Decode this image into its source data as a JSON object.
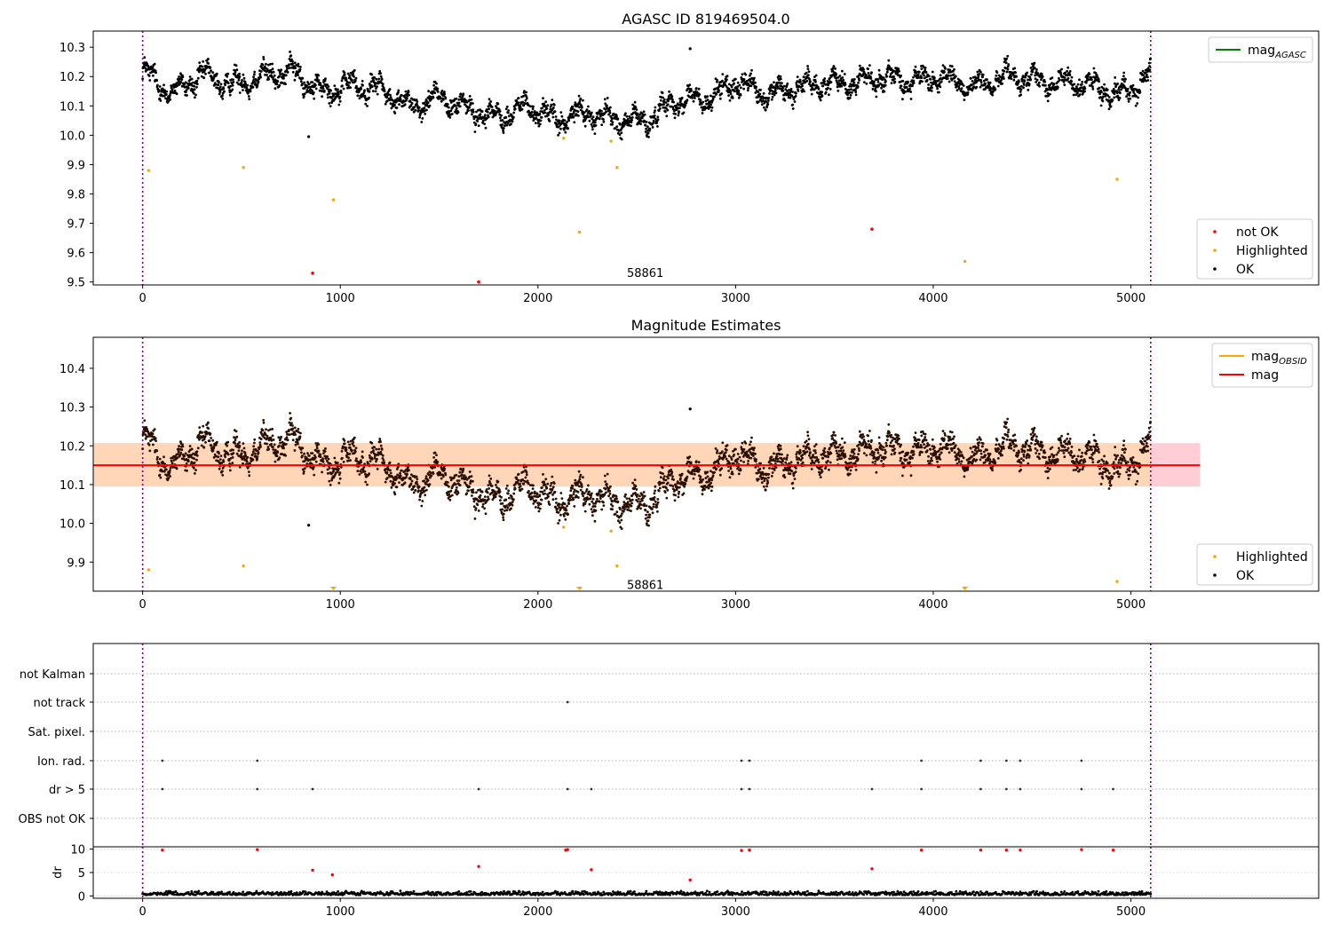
{
  "panels": [
    {
      "title": "AGASC ID 819469504.0",
      "xlim": [
        -250,
        5950
      ],
      "ylim": [
        9.49,
        10.355
      ],
      "xticks": [
        0,
        1000,
        2000,
        3000,
        4000,
        5000
      ],
      "yticks": [
        9.5,
        9.6,
        9.7,
        9.8,
        9.9,
        10.0,
        10.1,
        10.2,
        10.3
      ],
      "vlines": [
        0,
        5100
      ],
      "annotation": {
        "text": "58861",
        "x": 2450,
        "y": 9.53
      },
      "legends": [
        {
          "position": "top-right",
          "entries": [
            {
              "label": "mag",
              "subscript": "AGASC",
              "color": "#008000",
              "marker": "line"
            }
          ]
        },
        {
          "position": "bottom-right",
          "entries": [
            {
              "label": "not OK",
              "color": "#ff0000",
              "marker": "dot"
            },
            {
              "label": "Highlighted",
              "color": "#ffa500",
              "marker": "dot"
            },
            {
              "label": "OK",
              "color": "#000000",
              "marker": "dot"
            }
          ]
        }
      ]
    },
    {
      "title": "Magnitude Estimates",
      "xlim": [
        -250,
        5950
      ],
      "ylim": [
        9.825,
        10.48
      ],
      "xticks": [
        0,
        1000,
        2000,
        3000,
        4000,
        5000
      ],
      "yticks": [
        9.9,
        10.0,
        10.1,
        10.2,
        10.3,
        10.4
      ],
      "vlines": [
        0,
        5100
      ],
      "annotation": {
        "text": "58861",
        "x": 2450,
        "y": 9.84
      },
      "mag_line": {
        "value": 10.15,
        "x0": -250,
        "x1": 5350,
        "color": "#ff0000"
      },
      "bands": [
        {
          "x0": -250,
          "x1": 5350,
          "y0": 10.095,
          "y1": 10.207,
          "color": "#ffc0cb"
        },
        {
          "x0": -250,
          "x1": 5100,
          "y0": 10.095,
          "y1": 10.207,
          "color": "#ffd8b0"
        }
      ],
      "legends": [
        {
          "position": "top-right",
          "entries": [
            {
              "label": "mag",
              "subscript": "OBSID",
              "color": "#ffa500",
              "marker": "line"
            },
            {
              "label": "mag",
              "subscript": "",
              "color": "#ff0000",
              "marker": "line"
            }
          ]
        },
        {
          "position": "bottom-right",
          "entries": [
            {
              "label": "Highlighted",
              "color": "#ffa500",
              "marker": "dot"
            },
            {
              "label": "OK",
              "color": "#000000",
              "marker": "dot"
            }
          ]
        }
      ]
    },
    {
      "xlim": [
        -250,
        5950
      ],
      "xticks": [
        0,
        1000,
        2000,
        3000,
        4000,
        5000
      ],
      "vlines": [
        0,
        5100
      ],
      "flag_rows": [
        "not Kalman",
        "not track",
        "Sat. pixel.",
        "Ion. rad.",
        "dr > 5",
        "OBS not OK"
      ],
      "flag_points": {
        "not track": [
          2150
        ],
        "Ion. rad.": [
          100,
          580,
          3030,
          3070,
          3940,
          4240,
          4370,
          4440,
          4750
        ],
        "dr > 5": [
          100,
          580,
          860,
          1700,
          2150,
          2270,
          3030,
          3070,
          3690,
          3940,
          4240,
          4370,
          4440,
          4750,
          4910
        ]
      },
      "dr_ylabel": "dr",
      "dr_ylim": [
        -0.5,
        10.5
      ],
      "dr_yticks": [
        0,
        5,
        10
      ],
      "dr_red": [
        [
          100,
          9.8
        ],
        [
          580,
          9.9
        ],
        [
          860,
          5.5
        ],
        [
          960,
          4.5
        ],
        [
          1700,
          6.3
        ],
        [
          2140,
          9.8
        ],
        [
          2150,
          9.9
        ],
        [
          2270,
          5.6
        ],
        [
          2770,
          3.4
        ],
        [
          3030,
          9.7
        ],
        [
          3070,
          9.8
        ],
        [
          3690,
          5.8
        ],
        [
          3940,
          9.8
        ],
        [
          4240,
          9.8
        ],
        [
          4370,
          9.8
        ],
        [
          4440,
          9.8
        ],
        [
          4750,
          9.9
        ],
        [
          4910,
          9.8
        ]
      ]
    }
  ],
  "chart_data": {
    "type": "scatter",
    "title": "AGASC ID 819469504.0",
    "x_range": [
      0,
      5100
    ],
    "trend": {
      "x": [
        0,
        150,
        300,
        450,
        600,
        750,
        900,
        1050,
        1200,
        1350,
        1500,
        1650,
        1800,
        1950,
        2100,
        2250,
        2400,
        2550,
        2700,
        2850,
        3000,
        3150,
        3300,
        3450,
        3600,
        3750,
        3900,
        4050,
        4200,
        4350,
        4500,
        4650,
        4800,
        4950,
        5100
      ],
      "y": [
        10.22,
        10.14,
        10.21,
        10.17,
        10.2,
        10.22,
        10.15,
        10.17,
        10.16,
        10.1,
        10.13,
        10.09,
        10.06,
        10.1,
        10.05,
        10.08,
        10.05,
        10.05,
        10.12,
        10.12,
        10.18,
        10.14,
        10.16,
        10.18,
        10.18,
        10.2,
        10.18,
        10.2,
        10.16,
        10.2,
        10.19,
        10.18,
        10.17,
        10.14,
        10.2
      ]
    },
    "mag": 10.15,
    "mag_band": [
      10.095,
      10.207
    ],
    "highlighted": [
      [
        30,
        9.88
      ],
      [
        510,
        9.89
      ],
      [
        965,
        9.78
      ],
      [
        2130,
        9.99
      ],
      [
        2210,
        9.67
      ],
      [
        2370,
        9.98
      ],
      [
        2400,
        9.89
      ],
      [
        4160,
        9.57
      ],
      [
        4930,
        9.85
      ]
    ],
    "not_ok": [
      [
        860,
        9.53
      ],
      [
        1700,
        9.5
      ],
      [
        3690,
        9.68
      ]
    ],
    "ok_outliers": [
      [
        840,
        9.995
      ],
      [
        2770,
        10.295
      ]
    ]
  }
}
